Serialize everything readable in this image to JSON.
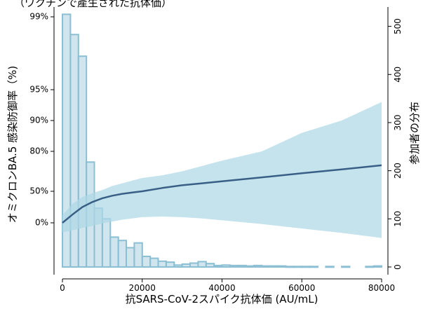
{
  "chart_data": {
    "type": "bar+line",
    "top_caption": "（ワクチンで產生された抗体価）",
    "xlabel": "抗SARS-CoV-2スパイク抗体価 (AU/mL)",
    "ylabel_left": "オミクロンBA.5 感染防御率（%)",
    "ylabel_right": "参加者の分布",
    "x_range": [
      0,
      80000
    ],
    "x_ticks": [
      0,
      20000,
      40000,
      60000,
      80000
    ],
    "left_ticks": [
      {
        "label": "99%",
        "value": 99
      },
      {
        "label": "95%",
        "value": 95
      },
      {
        "label": "90%",
        "value": 90
      },
      {
        "label": "80%",
        "value": 80
      },
      {
        "label": "50%",
        "value": 50
      },
      {
        "label": "0%",
        "value": 0
      }
    ],
    "right_ylim": [
      0,
      530
    ],
    "right_ticks": [
      0,
      100,
      200,
      300,
      400,
      500
    ],
    "histogram": {
      "name": "参加者の分布",
      "color": "#a9cfde",
      "edge_color": "#8cbfd3",
      "bins": [
        {
          "x0": 0,
          "x1": 2000,
          "count": 525
        },
        {
          "x0": 2000,
          "x1": 4000,
          "count": 483
        },
        {
          "x0": 4000,
          "x1": 6000,
          "count": 438
        },
        {
          "x0": 6000,
          "x1": 8000,
          "count": 218
        },
        {
          "x0": 8000,
          "x1": 10000,
          "count": 122
        },
        {
          "x0": 10000,
          "x1": 12000,
          "count": 100
        },
        {
          "x0": 12000,
          "x1": 14000,
          "count": 62
        },
        {
          "x0": 14000,
          "x1": 16000,
          "count": 55
        },
        {
          "x0": 16000,
          "x1": 18000,
          "count": 40
        },
        {
          "x0": 18000,
          "x1": 20000,
          "count": 50
        },
        {
          "x0": 20000,
          "x1": 22000,
          "count": 22
        },
        {
          "x0": 22000,
          "x1": 24000,
          "count": 18
        },
        {
          "x0": 24000,
          "x1": 26000,
          "count": 12
        },
        {
          "x0": 26000,
          "x1": 28000,
          "count": 10
        },
        {
          "x0": 28000,
          "x1": 30000,
          "count": 4
        },
        {
          "x0": 30000,
          "x1": 32000,
          "count": 6
        },
        {
          "x0": 32000,
          "x1": 34000,
          "count": 8
        },
        {
          "x0": 34000,
          "x1": 36000,
          "count": 11
        },
        {
          "x0": 36000,
          "x1": 38000,
          "count": 7
        },
        {
          "x0": 38000,
          "x1": 40000,
          "count": 3
        },
        {
          "x0": 40000,
          "x1": 42000,
          "count": 4
        },
        {
          "x0": 42000,
          "x1": 44000,
          "count": 3
        },
        {
          "x0": 44000,
          "x1": 46000,
          "count": 3
        },
        {
          "x0": 46000,
          "x1": 48000,
          "count": 2
        },
        {
          "x0": 48000,
          "x1": 50000,
          "count": 3
        },
        {
          "x0": 50000,
          "x1": 52000,
          "count": 2
        },
        {
          "x0": 52000,
          "x1": 54000,
          "count": 2
        },
        {
          "x0": 54000,
          "x1": 56000,
          "count": 2
        },
        {
          "x0": 56000,
          "x1": 58000,
          "count": 1
        },
        {
          "x0": 58000,
          "x1": 60000,
          "count": 1
        },
        {
          "x0": 60000,
          "x1": 62000,
          "count": 1
        },
        {
          "x0": 62000,
          "x1": 64000,
          "count": 1
        },
        {
          "x0": 66000,
          "x1": 68000,
          "count": 1
        },
        {
          "x0": 70000,
          "x1": 72000,
          "count": 1
        },
        {
          "x0": 76000,
          "x1": 78000,
          "count": 1
        },
        {
          "x0": 78000,
          "x1": 80000,
          "count": 2
        }
      ]
    },
    "curve": {
      "color": "#3a5f86",
      "x": [
        0,
        2500,
        5000,
        7500,
        10000,
        12500,
        15000,
        17500,
        20000,
        25000,
        30000,
        35000,
        40000,
        50000,
        60000,
        70000,
        80000
      ],
      "y": [
        0,
        13,
        25,
        33,
        39,
        43,
        46,
        48,
        50,
        52.5,
        54.5,
        56,
        57.5,
        60.5,
        63.5,
        66.5,
        69.5
      ]
    },
    "ci_band": {
      "color": "#add8e6",
      "x": [
        0,
        2500,
        5000,
        7500,
        10000,
        12500,
        15000,
        17500,
        20000,
        25000,
        30000,
        35000,
        40000,
        50000,
        60000,
        70000,
        80000
      ],
      "lower": [
        -15,
        -12,
        -8,
        -5,
        -1,
        2,
        5,
        7,
        9,
        10,
        9,
        7,
        4,
        -2,
        -9,
        -16,
        -24
      ],
      "upper": [
        12,
        30,
        41,
        47,
        51,
        54,
        56,
        58,
        60,
        62,
        65,
        69,
        73,
        80,
        86,
        90,
        93
      ]
    }
  }
}
